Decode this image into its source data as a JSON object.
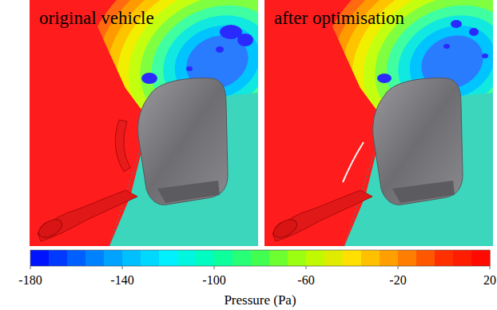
{
  "chart_data": {
    "type": "contour",
    "panels": [
      {
        "title": "original vehicle"
      },
      {
        "title": "after optimisation"
      }
    ],
    "colorbar": {
      "label": "Pressure (Pa)",
      "range": [
        -180,
        20
      ],
      "step": 8,
      "ticks": [
        -180,
        -140,
        -100,
        -60,
        -20,
        20
      ],
      "colors": [
        "#0000ff",
        "#0060ff",
        "#00b4ff",
        "#00f0ff",
        "#00ffb0",
        "#40ff50",
        "#b0ff00",
        "#ffe000",
        "#ff9000",
        "#ff3000",
        "#ff0000"
      ]
    }
  }
}
